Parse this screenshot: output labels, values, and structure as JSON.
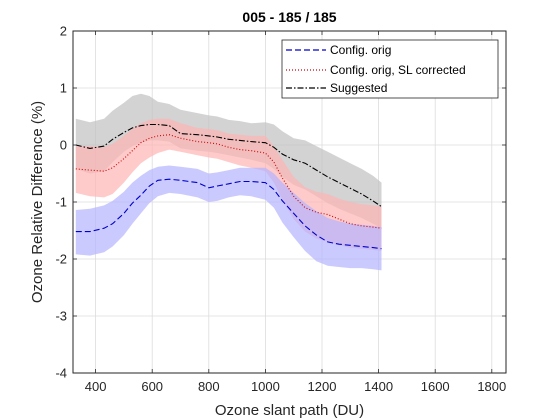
{
  "chart_data": {
    "type": "line",
    "title": "005 - 185 / 185",
    "xlabel": "Ozone slant path (DU)",
    "ylabel": "Ozone Relative Difference (%)",
    "xlim": [
      320,
      1850
    ],
    "ylim": [
      -4,
      2
    ],
    "xticks": [
      400,
      600,
      800,
      1000,
      1200,
      1400,
      1600,
      1800
    ],
    "yticks": [
      -4,
      -3,
      -2,
      -1,
      0,
      1,
      2
    ],
    "grid": true,
    "legend_position": "top-right",
    "series": [
      {
        "name": "Config. orig",
        "color": "#0000cc",
        "band_color": "#b3b3ff",
        "style": "dashed",
        "x": [
          330,
          380,
          430,
          460,
          500,
          530,
          560,
          590,
          620,
          660,
          700,
          760,
          800,
          830,
          870,
          910,
          950,
          1000,
          1030,
          1060,
          1100,
          1140,
          1180,
          1220,
          1260,
          1300,
          1340,
          1380,
          1410
        ],
        "y": [
          -1.52,
          -1.52,
          -1.46,
          -1.38,
          -1.2,
          -1.02,
          -0.88,
          -0.72,
          -0.62,
          -0.6,
          -0.62,
          -0.66,
          -0.75,
          -0.72,
          -0.68,
          -0.64,
          -0.64,
          -0.66,
          -0.78,
          -0.98,
          -1.2,
          -1.42,
          -1.58,
          -1.7,
          -1.74,
          -1.76,
          -1.78,
          -1.8,
          -1.82
        ],
        "lower": [
          -1.92,
          -1.94,
          -1.88,
          -1.78,
          -1.58,
          -1.38,
          -1.2,
          -1.02,
          -0.9,
          -0.84,
          -0.86,
          -0.92,
          -1.0,
          -0.98,
          -0.92,
          -0.88,
          -0.9,
          -0.96,
          -1.1,
          -1.36,
          -1.62,
          -1.86,
          -2.04,
          -2.12,
          -2.14,
          -2.16,
          -2.16,
          -2.18,
          -2.2
        ],
        "upper": [
          -1.14,
          -1.12,
          -1.06,
          -0.98,
          -0.82,
          -0.66,
          -0.54,
          -0.44,
          -0.38,
          -0.36,
          -0.38,
          -0.42,
          -0.5,
          -0.48,
          -0.44,
          -0.4,
          -0.4,
          -0.4,
          -0.5,
          -0.66,
          -0.84,
          -1.02,
          -1.16,
          -1.28,
          -1.34,
          -1.38,
          -1.4,
          -1.42,
          -1.44
        ]
      },
      {
        "name": "Config. orig, SL corrected",
        "color": "#cc0000",
        "band_color": "#ffb3b3",
        "style": "dotted",
        "x": [
          330,
          380,
          430,
          460,
          500,
          530,
          560,
          590,
          620,
          660,
          700,
          760,
          800,
          830,
          870,
          910,
          950,
          1000,
          1030,
          1060,
          1100,
          1140,
          1180,
          1220,
          1260,
          1300,
          1340,
          1380,
          1410
        ],
        "y": [
          -0.42,
          -0.44,
          -0.46,
          -0.4,
          -0.24,
          -0.1,
          0.04,
          0.12,
          0.16,
          0.18,
          0.12,
          0.06,
          0.04,
          0.02,
          -0.04,
          -0.08,
          -0.1,
          -0.14,
          -0.3,
          -0.58,
          -0.9,
          -1.1,
          -1.18,
          -1.22,
          -1.3,
          -1.38,
          -1.42,
          -1.44,
          -1.46
        ],
        "lower": [
          -0.84,
          -0.9,
          -0.92,
          -0.86,
          -0.66,
          -0.48,
          -0.32,
          -0.22,
          -0.14,
          -0.08,
          -0.12,
          -0.18,
          -0.22,
          -0.24,
          -0.3,
          -0.36,
          -0.4,
          -0.46,
          -0.66,
          -0.96,
          -1.3,
          -1.52,
          -1.64,
          -1.7,
          -1.76,
          -1.8,
          -1.82,
          -1.84,
          -1.86
        ],
        "upper": [
          -0.02,
          -0.02,
          -0.04,
          0.02,
          0.16,
          0.28,
          0.38,
          0.44,
          0.46,
          0.46,
          0.38,
          0.3,
          0.28,
          0.26,
          0.2,
          0.18,
          0.16,
          0.16,
          -0.02,
          -0.26,
          -0.56,
          -0.74,
          -0.82,
          -0.86,
          -0.94,
          -1.0,
          -1.04,
          -1.06,
          -1.08
        ]
      },
      {
        "name": "Suggested",
        "color": "#000000",
        "band_color": "#c0c0c0",
        "style": "dashdot",
        "x": [
          330,
          380,
          430,
          460,
          500,
          530,
          560,
          590,
          620,
          660,
          700,
          760,
          800,
          830,
          870,
          910,
          950,
          1000,
          1030,
          1060,
          1100,
          1140,
          1180,
          1220,
          1260,
          1300,
          1340,
          1380,
          1410
        ],
        "y": [
          0.0,
          -0.06,
          -0.02,
          0.1,
          0.22,
          0.3,
          0.34,
          0.36,
          0.36,
          0.34,
          0.2,
          0.18,
          0.16,
          0.14,
          0.1,
          0.08,
          0.06,
          0.04,
          -0.04,
          -0.16,
          -0.26,
          -0.32,
          -0.44,
          -0.56,
          -0.66,
          -0.76,
          -0.86,
          -0.98,
          -1.08
        ],
        "lower": [
          -0.42,
          -0.5,
          -0.46,
          -0.3,
          -0.12,
          -0.02,
          0.04,
          0.08,
          0.08,
          0.06,
          -0.06,
          -0.1,
          -0.12,
          -0.14,
          -0.18,
          -0.22,
          -0.26,
          -0.32,
          -0.42,
          -0.56,
          -0.7,
          -0.78,
          -0.9,
          -1.02,
          -1.12,
          -1.2,
          -1.28,
          -1.38,
          -1.46
        ],
        "upper": [
          0.46,
          0.4,
          0.46,
          0.6,
          0.74,
          0.86,
          0.9,
          0.86,
          0.76,
          0.72,
          0.62,
          0.56,
          0.52,
          0.5,
          0.44,
          0.42,
          0.38,
          0.4,
          0.36,
          0.24,
          0.12,
          0.08,
          -0.02,
          -0.12,
          -0.22,
          -0.32,
          -0.42,
          -0.54,
          -0.66
        ]
      }
    ]
  }
}
